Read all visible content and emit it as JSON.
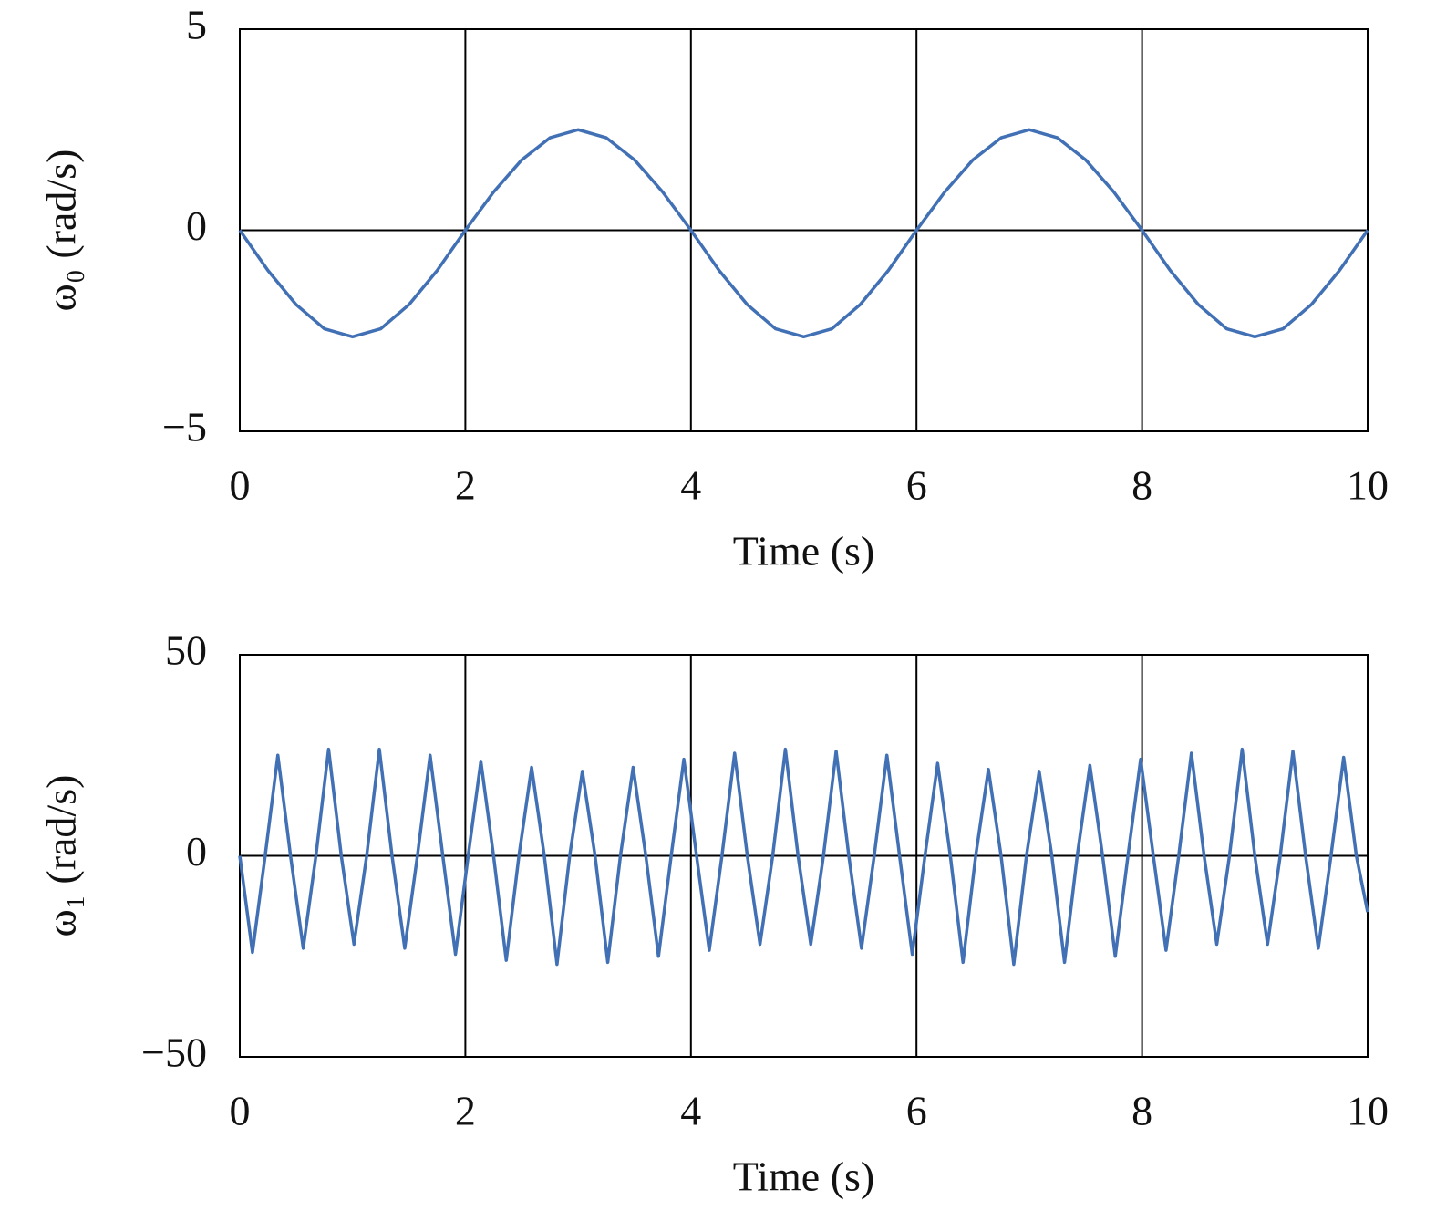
{
  "chart_data": [
    {
      "type": "line",
      "x_label": "Time (s)",
      "y_label": "ω₀ (rad/s)",
      "x": [
        0,
        0.25,
        0.5,
        0.75,
        1,
        1.25,
        1.5,
        1.75,
        2,
        2.25,
        2.5,
        2.75,
        3,
        3.25,
        3.5,
        3.75,
        4,
        4.25,
        4.5,
        4.75,
        5,
        5.25,
        5.5,
        5.75,
        6,
        6.25,
        6.5,
        6.75,
        7,
        7.25,
        7.5,
        7.75,
        8,
        8.25,
        8.5,
        8.75,
        9,
        9.25,
        9.5,
        9.75,
        10
      ],
      "series": [
        {
          "color": "#4170b5",
          "values": [
            0,
            -1.0,
            -1.85,
            -2.45,
            -2.65,
            -2.45,
            -1.85,
            -1.0,
            0,
            0.95,
            1.75,
            2.3,
            2.5,
            2.3,
            1.75,
            0.95,
            0,
            -1.0,
            -1.85,
            -2.45,
            -2.65,
            -2.45,
            -1.85,
            -1.0,
            0,
            0.95,
            1.75,
            2.3,
            2.5,
            2.3,
            1.75,
            0.95,
            0,
            -1.0,
            -1.85,
            -2.45,
            -2.65,
            -2.45,
            -1.85,
            -1.0,
            0
          ]
        }
      ],
      "xlim": [
        0,
        10
      ],
      "xticks": [
        0,
        2,
        4,
        6,
        8,
        10
      ],
      "ylim": [
        -5,
        5
      ],
      "yticks": [
        {
          "value": -5,
          "label": "−5"
        },
        0,
        5
      ],
      "grid": true
    },
    {
      "type": "line",
      "x_label": "Time (s)",
      "y_label": "ω₁ (rad/s)",
      "x": [
        0,
        0.1125,
        0.225,
        0.3375,
        0.45,
        0.5625,
        0.675,
        0.7875,
        0.9,
        1.0125,
        1.125,
        1.2375,
        1.35,
        1.4625,
        1.575,
        1.6875,
        1.8,
        1.9125,
        2.025,
        2.1375,
        2.25,
        2.3625,
        2.475,
        2.5875,
        2.7,
        2.8125,
        2.925,
        3.0375,
        3.15,
        3.2625,
        3.375,
        3.4875,
        3.6,
        3.7125,
        3.825,
        3.9375,
        4.05,
        4.1625,
        4.275,
        4.3875,
        4.5,
        4.6125,
        4.725,
        4.8375,
        4.95,
        5.0625,
        5.175,
        5.2875,
        5.4,
        5.5125,
        5.625,
        5.7375,
        5.85,
        5.9625,
        6.075,
        6.1875,
        6.3,
        6.4125,
        6.525,
        6.6375,
        6.75,
        6.8625,
        6.975,
        7.0875,
        7.2,
        7.3125,
        7.425,
        7.5375,
        7.65,
        7.7625,
        7.875,
        7.9875,
        8.1,
        8.2125,
        8.325,
        8.4375,
        8.55,
        8.6625,
        8.775,
        8.8875,
        9.0,
        9.1125,
        9.225,
        9.3375,
        9.45,
        9.5625,
        9.675,
        9.7875,
        9.9,
        10
      ],
      "series": [
        {
          "color": "#4170b5",
          "values": [
            0,
            -24,
            0,
            25,
            0,
            -23,
            0,
            26.5,
            0,
            -22,
            0,
            26.5,
            0,
            -23,
            0,
            25,
            0,
            -24.5,
            0,
            23.5,
            0,
            -26,
            0,
            22,
            0,
            -27,
            0,
            21,
            0,
            -26.5,
            0,
            22,
            0,
            -25,
            0,
            24,
            0,
            -23.5,
            0,
            25.5,
            0,
            -22,
            0,
            26.5,
            0,
            -22,
            0,
            26,
            0,
            -23,
            0,
            25,
            0,
            -24.5,
            0,
            23,
            0,
            -26.5,
            0,
            21.5,
            0,
            -27,
            0,
            21,
            0,
            -26.5,
            0,
            22.5,
            0,
            -25,
            0,
            24,
            0,
            -23.5,
            0,
            25.5,
            0,
            -22,
            0,
            26.5,
            0,
            -22,
            0,
            26,
            0,
            -23,
            0,
            24.5,
            0,
            -14
          ]
        }
      ],
      "xlim": [
        0,
        10
      ],
      "xticks": [
        0,
        2,
        4,
        6,
        8,
        10
      ],
      "ylim": [
        -50,
        50
      ],
      "yticks": [
        {
          "value": -50,
          "label": "−50"
        },
        0,
        50
      ],
      "grid": true
    }
  ]
}
